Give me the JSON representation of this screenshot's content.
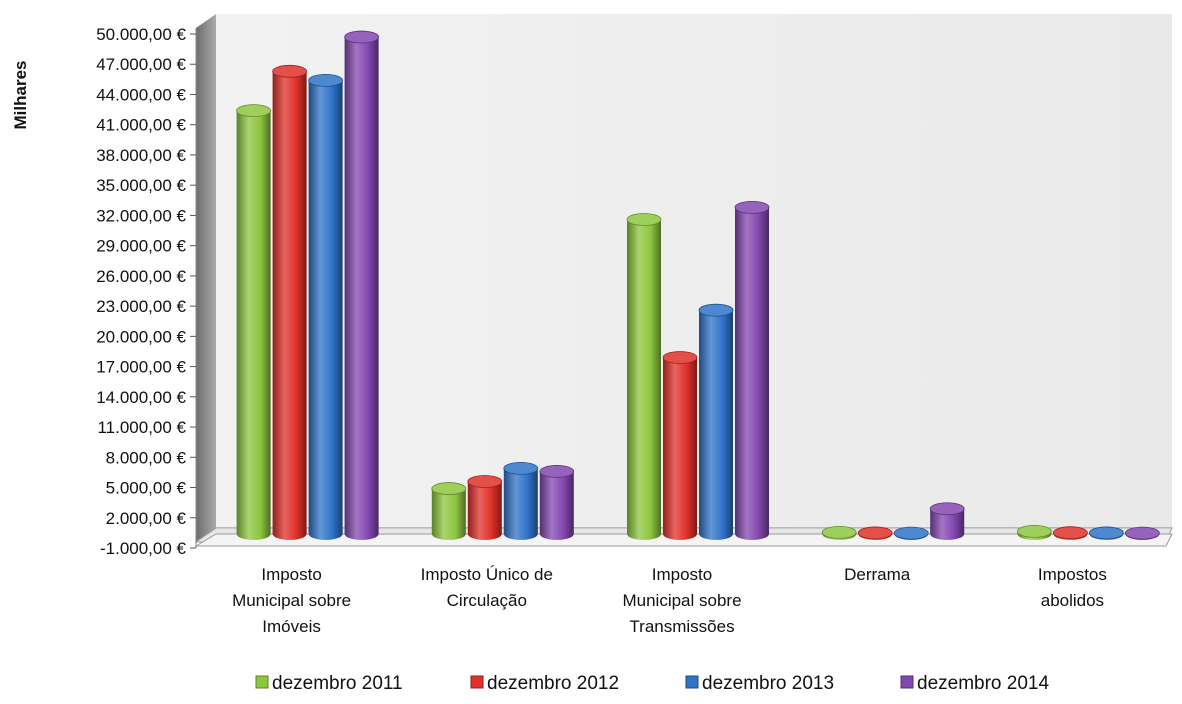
{
  "chart_data": {
    "type": "bar",
    "variant": "3d-clustered-cylinder",
    "ylabel": "Milhares",
    "ylim": [
      -1000,
      50000
    ],
    "ytick_step": 3000,
    "ytick_labels": [
      "-1.000,00 €",
      "2.000,00 €",
      "5.000,00 €",
      "8.000,00 €",
      "11.000,00 €",
      "14.000,00 €",
      "17.000,00 €",
      "20.000,00 €",
      "23.000,00 €",
      "26.000,00 €",
      "29.000,00 €",
      "32.000,00 €",
      "35.000,00 €",
      "38.000,00 €",
      "41.000,00 €",
      "44.000,00 €",
      "47.000,00 €",
      "50.000,00 €"
    ],
    "categories": [
      [
        "Imposto",
        "Municipal sobre",
        "Imóveis"
      ],
      [
        "Imposto Único de",
        "Circulação"
      ],
      [
        "Imposto",
        "Municipal sobre",
        "Transmissões"
      ],
      [
        "Derrama"
      ],
      [
        "Impostos",
        "abolidos"
      ]
    ],
    "series": [
      {
        "name": "dezembro 2011",
        "color": "#8DC63F",
        "values": [
          42000,
          4500,
          31200,
          150,
          250
        ]
      },
      {
        "name": "dezembro 2012",
        "color": "#E0302A",
        "values": [
          45900,
          5200,
          17500,
          100,
          120
        ]
      },
      {
        "name": "dezembro 2013",
        "color": "#2F73C9",
        "values": [
          45000,
          6500,
          22200,
          80,
          100
        ]
      },
      {
        "name": "dezembro 2014",
        "color": "#8347B0",
        "values": [
          49300,
          6200,
          32400,
          2500,
          80
        ]
      }
    ],
    "grid": false,
    "legend_position": "bottom"
  }
}
